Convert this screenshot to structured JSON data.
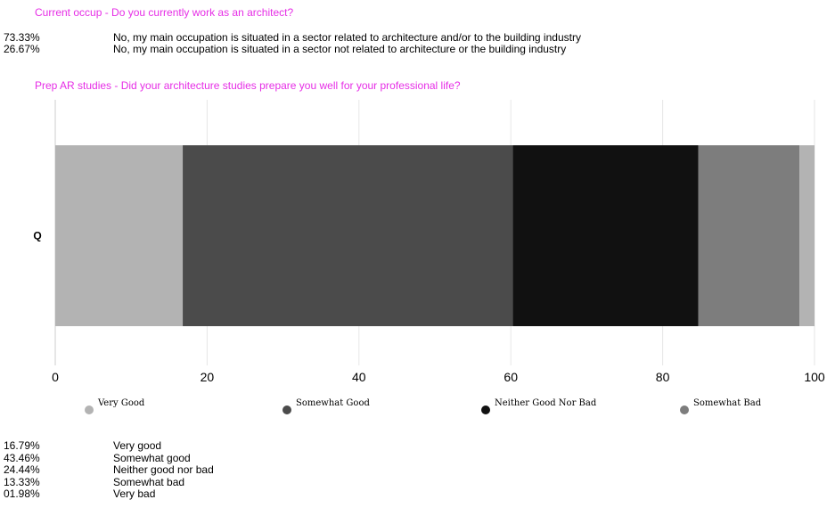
{
  "questions": [
    {
      "title": "Current occup - Do you currently work as an architect?",
      "answers": [
        {
          "pct": "73.33%",
          "text": "No, my main occupation is situated in a sector related to architecture and/or to the building industry"
        },
        {
          "pct": "26.67%",
          "text": "No, my main occupation is situated in a sector not related to architecture or the building industry"
        }
      ]
    },
    {
      "title": "Prep AR studies - Did your architecture studies prepare you well for your professional life?",
      "answers": [
        {
          "pct": "16.79%",
          "text": "Very good"
        },
        {
          "pct": "43.46%",
          "text": "Somewhat good"
        },
        {
          "pct": "24.44%",
          "text": "Neither good nor bad"
        },
        {
          "pct": "13.33%",
          "text": "Somewhat bad"
        },
        {
          "pct": "01.98%",
          "text": "Very bad"
        }
      ]
    }
  ],
  "chart_data": {
    "type": "bar",
    "orientation": "horizontal",
    "stacked": true,
    "categories": [
      "Q"
    ],
    "series": [
      {
        "name": "Very Good",
        "values": [
          16.79
        ],
        "color": "#b3b3b3"
      },
      {
        "name": "Somewhat Good",
        "values": [
          43.46
        ],
        "color": "#4b4b4b"
      },
      {
        "name": "Neither Good Nor Bad",
        "values": [
          24.44
        ],
        "color": "#111111"
      },
      {
        "name": "Somewhat Bad",
        "values": [
          13.33
        ],
        "color": "#7d7d7d"
      },
      {
        "name": "",
        "values": [
          1.98
        ],
        "color": "#b3b3b3"
      }
    ],
    "xlim": [
      0,
      100
    ],
    "xticks": [
      0,
      20,
      40,
      60,
      80,
      100
    ],
    "xlabel": "",
    "ylabel": "",
    "grid": true,
    "legend": "bottom"
  }
}
